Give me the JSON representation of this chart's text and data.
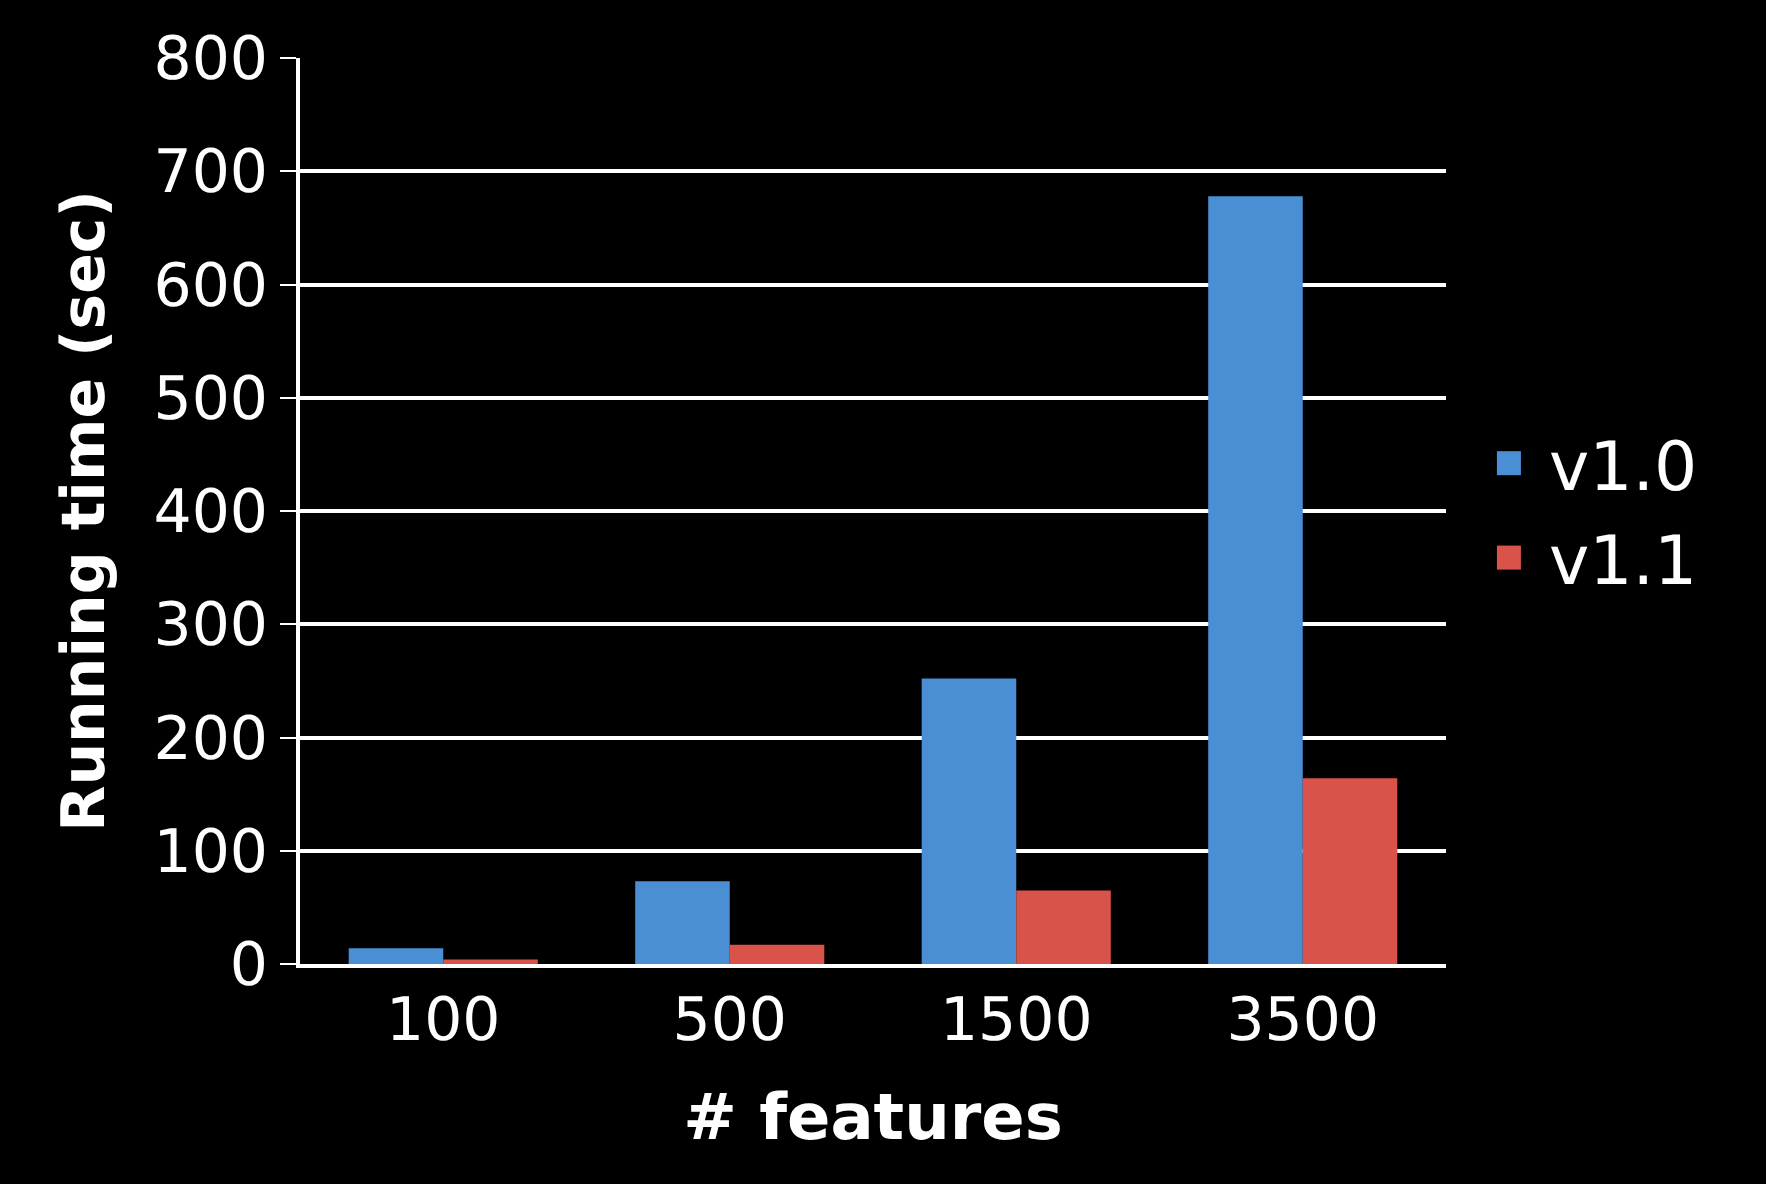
{
  "chart_data": {
    "type": "bar",
    "xlabel": "# features",
    "ylabel": "Running time (sec)",
    "categories": [
      "100",
      "500",
      "1500",
      "3500"
    ],
    "series": [
      {
        "name": "v1.0",
        "color": "#4a8fd4",
        "values": [
          14,
          73,
          252,
          678
        ]
      },
      {
        "name": "v1.1",
        "color": "#d9534a",
        "values": [
          4,
          17,
          65,
          164
        ]
      }
    ],
    "ylim": [
      0,
      800
    ],
    "yticks": [
      0,
      100,
      200,
      300,
      400,
      500,
      600,
      700,
      800
    ],
    "grid": "y",
    "legend": "right"
  }
}
